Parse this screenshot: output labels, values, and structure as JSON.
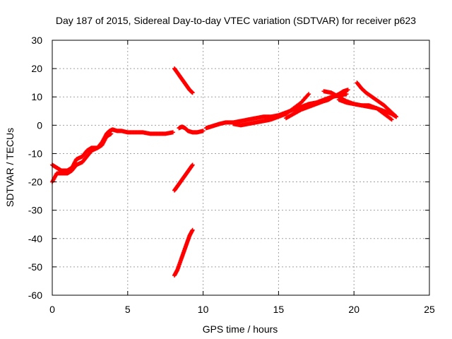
{
  "chart_data": {
    "type": "scatter",
    "title": "Day 187 of 2015, Sidereal Day-to-day VTEC variation (SDTVAR) for receiver p623",
    "xlabel": "GPS time / hours",
    "ylabel": "SDTVAR / TECUs",
    "xlim": [
      0,
      25
    ],
    "ylim": [
      -60,
      30
    ],
    "xticks": [
      "0",
      "5",
      "10",
      "15",
      "20",
      "25"
    ],
    "yticks": [
      "-60",
      "-50",
      "-40",
      "-30",
      "-20",
      "-10",
      "0",
      "10",
      "20",
      "30"
    ],
    "grid": true,
    "marker": "+",
    "colors": {
      "series": "#ff0000",
      "grid": "#a0a0a0",
      "frame": "#000000"
    },
    "series": [
      {
        "name": "main-trend",
        "x": [
          0.0,
          0.3,
          0.6,
          1.0,
          1.3,
          1.6,
          2.0,
          2.3,
          2.6,
          3.0,
          3.3,
          3.6,
          3.8,
          4.0,
          4.3,
          4.6,
          5.0,
          5.5,
          6.0,
          6.5,
          7.0,
          7.5,
          8.0
        ],
        "y": [
          -14,
          -15,
          -16,
          -16,
          -15,
          -12,
          -11,
          -9,
          -8,
          -8,
          -6,
          -3,
          -2,
          -1.5,
          -2,
          -2,
          -2.5,
          -2.5,
          -2.5,
          -3,
          -3,
          -3,
          -2.5
        ]
      },
      {
        "name": "main-trend-lower",
        "x": [
          0.0,
          0.3,
          0.6,
          1.0,
          1.3,
          1.6,
          2.0,
          2.3,
          2.6,
          3.0,
          3.3,
          3.6,
          3.9
        ],
        "y": [
          -20,
          -17,
          -17,
          -17,
          -16,
          -14,
          -13,
          -11,
          -9,
          -8,
          -7,
          -4,
          -3
        ]
      },
      {
        "name": "mid-gap",
        "x": [
          8.4,
          8.6,
          8.8,
          9.0,
          9.3,
          9.6,
          10.0
        ],
        "y": [
          -1,
          -0.5,
          -1,
          -2,
          -2.5,
          -2.5,
          -2
        ]
      },
      {
        "name": "rising-1",
        "x": [
          10.2,
          10.5,
          10.8,
          11.1,
          11.5,
          12.0,
          12.5,
          13.0,
          13.5,
          14.0,
          14.5,
          15.0,
          15.5,
          16.0,
          16.5,
          17.0,
          17.5,
          18.0,
          18.5,
          19.0,
          19.5
        ],
        "y": [
          -1,
          -0.5,
          0,
          0.5,
          1,
          1,
          1.5,
          2,
          2.5,
          3,
          3,
          3.5,
          4.5,
          5.5,
          6.5,
          7.5,
          8,
          9,
          10,
          10.5,
          11
        ]
      },
      {
        "name": "rising-2",
        "x": [
          12.0,
          12.5,
          13.0,
          13.5,
          14.0,
          14.5,
          15.0,
          15.5,
          16.0,
          16.5,
          17.0
        ],
        "y": [
          0.5,
          0,
          0.5,
          1,
          1.5,
          2,
          3,
          4,
          6,
          8,
          11
        ]
      },
      {
        "name": "rising-3",
        "x": [
          15.5,
          16.0,
          16.5,
          17.0,
          17.5,
          18.0,
          18.3,
          18.6,
          19.0,
          19.3,
          19.6
        ],
        "y": [
          2.5,
          4,
          5.5,
          6.5,
          7.5,
          8.5,
          9,
          10,
          11,
          12,
          12.5
        ]
      },
      {
        "name": "peak-drop-1",
        "x": [
          18.0,
          18.5,
          19.0,
          19.5,
          20.0,
          20.5,
          21.0,
          21.5,
          22.0,
          22.5,
          22.8
        ],
        "y": [
          12,
          11.5,
          10,
          8.5,
          7.5,
          7,
          6.5,
          6,
          5,
          4,
          3
        ]
      },
      {
        "name": "peak-drop-2",
        "x": [
          20.2,
          20.5,
          20.8,
          21.2,
          21.6,
          22.0,
          22.4,
          22.8
        ],
        "y": [
          15,
          13,
          11.5,
          10,
          8.5,
          7,
          5,
          3
        ]
      },
      {
        "name": "peak-drop-3",
        "x": [
          19.0,
          19.5,
          20.0,
          20.5,
          21.0,
          21.5,
          22.0,
          22.5
        ],
        "y": [
          9,
          8,
          7.5,
          7,
          7,
          6,
          4,
          2
        ]
      },
      {
        "name": "outlier-high",
        "x": [
          8.1,
          8.3,
          8.5,
          8.7,
          8.9,
          9.1,
          9.3
        ],
        "y": [
          20,
          18.5,
          17,
          15.5,
          14,
          12.5,
          11.5
        ]
      },
      {
        "name": "outlier-mid",
        "x": [
          8.1,
          8.3,
          8.5,
          8.7,
          8.9,
          9.1,
          9.3
        ],
        "y": [
          -23,
          -21.5,
          -20,
          -18.5,
          -17,
          -15.5,
          -14
        ]
      },
      {
        "name": "outlier-low",
        "x": [
          8.1,
          8.3,
          8.5,
          8.7,
          8.9,
          9.1,
          9.3
        ],
        "y": [
          -53,
          -51,
          -48,
          -45,
          -42,
          -39,
          -37
        ]
      }
    ]
  }
}
